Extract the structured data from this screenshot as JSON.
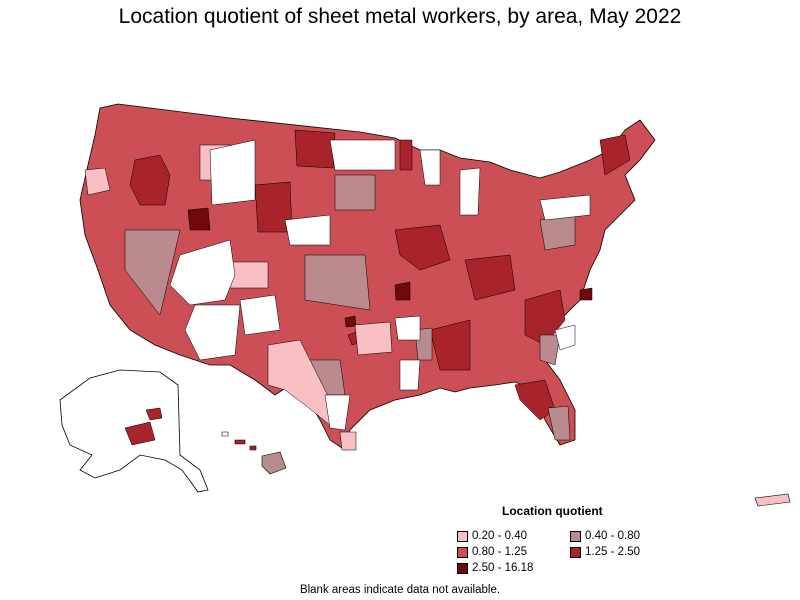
{
  "title": "Location quotient of sheet metal workers, by area, May 2022",
  "legend": {
    "title": "Location quotient",
    "items": [
      {
        "label": "0.20 - 0.40",
        "color": "#f9c0c4"
      },
      {
        "label": "0.40 - 0.80",
        "color": "#b98b8f"
      },
      {
        "label": "0.80 - 1.25",
        "color": "#cc4f55"
      },
      {
        "label": "1.25 - 2.50",
        "color": "#a8232a"
      },
      {
        "label": "2.50 - 16.18",
        "color": "#6e0a0c"
      }
    ]
  },
  "footnote": "Blank areas indicate data not available.",
  "colors": {
    "blank": "#ffffff",
    "border": "#000000"
  }
}
